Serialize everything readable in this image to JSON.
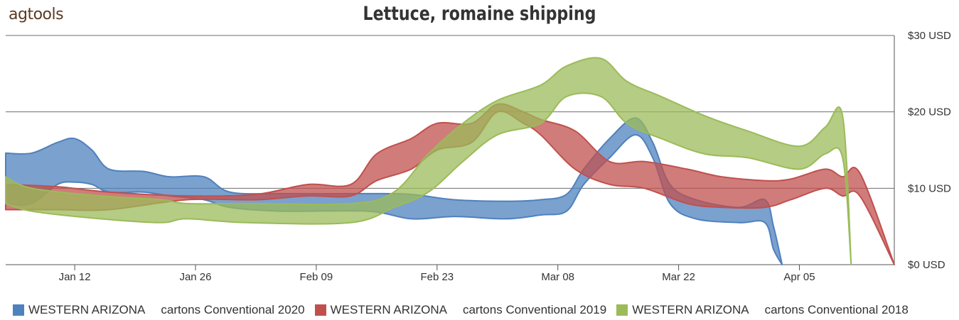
{
  "logo": "agtools",
  "chart_data": {
    "type": "area",
    "title": "Lettuce, romaine shipping",
    "xlabel": "",
    "ylabel": "",
    "ylim": [
      0,
      30
    ],
    "yticks": [
      0,
      10,
      20,
      30
    ],
    "ytick_labels": [
      "$0 USD",
      "$10 USD",
      "$20 USD",
      "$30 USD"
    ],
    "xlim": [
      "2020-01-04",
      "2020-04-16"
    ],
    "xticks": [
      "2020-01-12",
      "2020-01-26",
      "2020-02-09",
      "2020-02-23",
      "2020-03-08",
      "2020-03-22",
      "2020-04-05"
    ],
    "xtick_labels": [
      "Jan 12",
      "Jan 26",
      "Feb 09",
      "Feb 23",
      "Mar 08",
      "Mar 22",
      "Apr 05"
    ],
    "grid": true,
    "legend_position": "bottom",
    "series": [
      {
        "name": "WESTERN ARIZONA",
        "unit": "cartons Conventional 2020",
        "color": "#4f81bd",
        "points": [
          [
            "2020-01-04",
            8.0,
            14.6
          ],
          [
            "2020-01-07",
            8.0,
            14.6
          ],
          [
            "2020-01-10",
            10.5,
            16.0
          ],
          [
            "2020-01-12",
            10.8,
            16.5
          ],
          [
            "2020-01-14",
            10.5,
            15.0
          ],
          [
            "2020-01-16",
            9.5,
            12.5
          ],
          [
            "2020-01-20",
            9.5,
            12.2
          ],
          [
            "2020-01-23",
            9.0,
            11.5
          ],
          [
            "2020-01-27",
            8.5,
            11.5
          ],
          [
            "2020-01-30",
            7.5,
            9.5
          ],
          [
            "2020-02-05",
            7.0,
            9.3
          ],
          [
            "2020-02-15",
            7.0,
            9.3
          ],
          [
            "2020-02-20",
            6.0,
            9.2
          ],
          [
            "2020-02-25",
            6.3,
            8.5
          ],
          [
            "2020-03-02",
            6.0,
            8.3
          ],
          [
            "2020-03-06",
            6.5,
            8.5
          ],
          [
            "2020-03-09",
            7.0,
            9.2
          ],
          [
            "2020-03-11",
            10.5,
            12.5
          ],
          [
            "2020-03-14",
            14.0,
            16.5
          ],
          [
            "2020-03-17",
            17.0,
            19.2
          ],
          [
            "2020-03-19",
            14.0,
            16.0
          ],
          [
            "2020-03-21",
            8.0,
            10.5
          ],
          [
            "2020-03-24",
            6.0,
            8.5
          ],
          [
            "2020-03-29",
            5.5,
            7.5
          ],
          [
            "2020-04-01",
            5.5,
            8.5
          ],
          [
            "2020-04-02",
            2.0,
            5.0
          ],
          [
            "2020-04-03",
            0.0,
            0.0
          ]
        ]
      },
      {
        "name": "WESTERN ARIZONA",
        "unit": "cartons Conventional 2019",
        "color": "#c0504d",
        "points": [
          [
            "2020-01-04",
            7.2,
            10.5
          ],
          [
            "2020-01-10",
            7.2,
            10.2
          ],
          [
            "2020-01-16",
            7.2,
            9.5
          ],
          [
            "2020-01-25",
            8.5,
            9.0
          ],
          [
            "2020-02-02",
            8.5,
            9.2
          ],
          [
            "2020-02-08",
            9.0,
            10.5
          ],
          [
            "2020-02-13",
            9.0,
            10.5
          ],
          [
            "2020-02-16",
            11.0,
            14.5
          ],
          [
            "2020-02-20",
            12.5,
            16.5
          ],
          [
            "2020-02-23",
            15.0,
            18.5
          ],
          [
            "2020-02-27",
            16.0,
            18.5
          ],
          [
            "2020-03-01",
            20.0,
            21.0
          ],
          [
            "2020-03-04",
            18.5,
            20.0
          ],
          [
            "2020-03-06",
            17.0,
            19.0
          ],
          [
            "2020-03-10",
            12.5,
            17.5
          ],
          [
            "2020-03-14",
            10.5,
            13.5
          ],
          [
            "2020-03-18",
            10.0,
            13.5
          ],
          [
            "2020-03-23",
            8.0,
            12.5
          ],
          [
            "2020-03-27",
            7.5,
            11.5
          ],
          [
            "2020-04-01",
            7.5,
            11.0
          ],
          [
            "2020-04-04",
            8.5,
            11.2
          ],
          [
            "2020-04-08",
            10.0,
            12.5
          ],
          [
            "2020-04-10",
            9.0,
            11.5
          ],
          [
            "2020-04-12",
            9.0,
            12.0
          ],
          [
            "2020-04-16",
            0.0,
            0.0
          ]
        ]
      },
      {
        "name": "WESTERN ARIZONA",
        "unit": "cartons Conventional 2018",
        "color": "#9bbb59",
        "points": [
          [
            "2020-01-04",
            8.0,
            11.5
          ],
          [
            "2020-01-07",
            7.0,
            10.0
          ],
          [
            "2020-01-15",
            6.0,
            9.0
          ],
          [
            "2020-01-22",
            5.5,
            8.5
          ],
          [
            "2020-01-25",
            6.0,
            8.0
          ],
          [
            "2020-02-01",
            5.5,
            8.0
          ],
          [
            "2020-02-13",
            5.5,
            8.0
          ],
          [
            "2020-02-18",
            7.5,
            9.5
          ],
          [
            "2020-02-22",
            9.5,
            14.5
          ],
          [
            "2020-02-26",
            13.5,
            18.5
          ],
          [
            "2020-03-01",
            17.0,
            21.5
          ],
          [
            "2020-03-06",
            18.5,
            23.5
          ],
          [
            "2020-03-09",
            22.0,
            26.0
          ],
          [
            "2020-03-13",
            22.0,
            27.0
          ],
          [
            "2020-03-16",
            18.5,
            24.0
          ],
          [
            "2020-03-20",
            16.5,
            22.0
          ],
          [
            "2020-03-25",
            14.5,
            19.5
          ],
          [
            "2020-03-30",
            14.0,
            17.5
          ],
          [
            "2020-04-05",
            12.5,
            15.5
          ],
          [
            "2020-04-08",
            14.5,
            18.0
          ],
          [
            "2020-04-10",
            14.0,
            19.5
          ],
          [
            "2020-04-11",
            0.0,
            0.0
          ]
        ]
      }
    ]
  }
}
